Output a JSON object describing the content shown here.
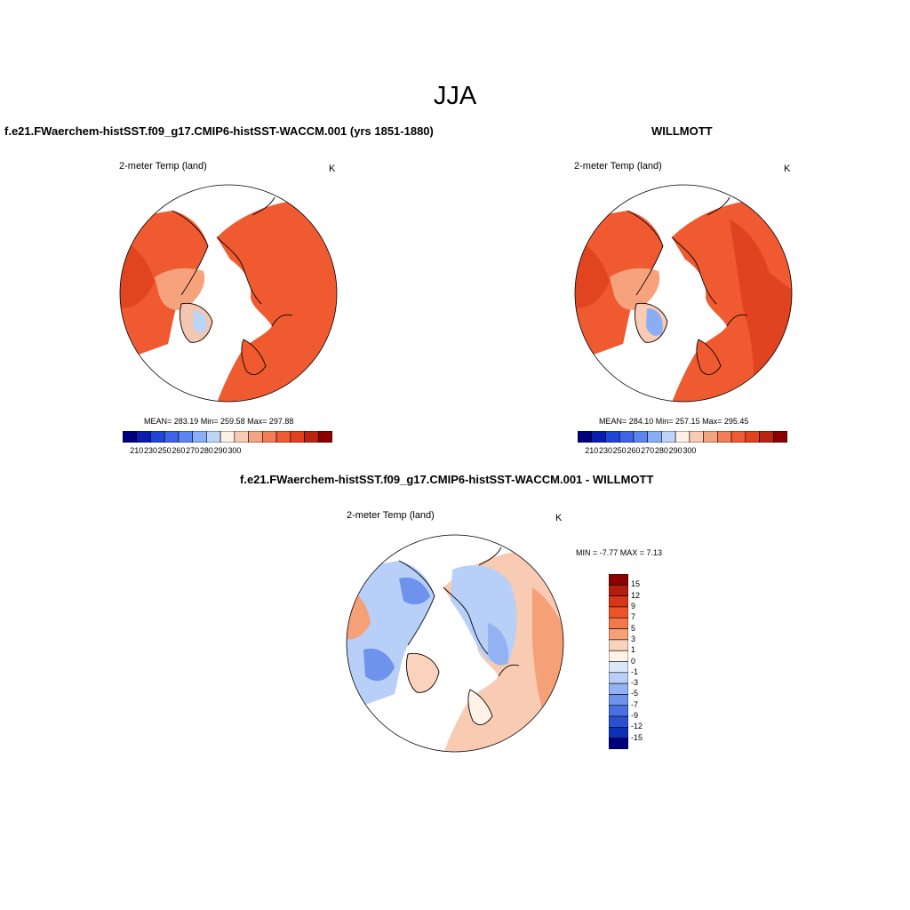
{
  "season": "JJA",
  "panels": {
    "model": {
      "title": "f.e21.FWaerchem-histSST.f09_g17.CMIP6-histSST-WACCM.001 (yrs 1851-1880)",
      "variable": "2-meter Temp (land)",
      "units": "K",
      "stats": "MEAN= 283.19  Min= 259.58  Max= 297.88"
    },
    "obs": {
      "title": "WILLMOTT",
      "variable": "2-meter Temp (land)",
      "units": "K",
      "stats": "MEAN= 284.10  Min= 257.15  Max= 295.45"
    },
    "diff": {
      "title": "f.e21.FWaerchem-histSST.f09_g17.CMIP6-histSST-WACCM.001 - WILLMOTT",
      "variable": "2-meter Temp (land)",
      "units": "K",
      "stats": "MIN =  -7.77 MAX =   7.13"
    }
  },
  "colorbar_abs": {
    "colors": [
      "#00007f",
      "#0a1eae",
      "#1f46d6",
      "#3c63e8",
      "#5a86f0",
      "#8aaef6",
      "#bcd4f8",
      "#fdf0e4",
      "#f9cbb3",
      "#f5a480",
      "#f27d56",
      "#ef5b32",
      "#e0411e",
      "#b82610",
      "#8b0000"
    ],
    "tick_labels": [
      "210",
      "230",
      "250",
      "260",
      "270",
      "280",
      "290",
      "300"
    ]
  },
  "colorbar_diff": {
    "colors": [
      "#8b0000",
      "#b01e0e",
      "#d93619",
      "#ef5328",
      "#f4794a",
      "#f6a078",
      "#fbd2bb",
      "#fff2e6",
      "#dbe7fb",
      "#b8cff7",
      "#92b2f2",
      "#6d93ec",
      "#4a71e3",
      "#2851d2",
      "#0d31b6",
      "#00007f"
    ],
    "tick_labels": [
      "15",
      "12",
      "9",
      "7",
      "5",
      "3",
      "1",
      "0",
      "-1",
      "-3",
      "-5",
      "-7",
      "-9",
      "-12",
      "-15"
    ]
  }
}
